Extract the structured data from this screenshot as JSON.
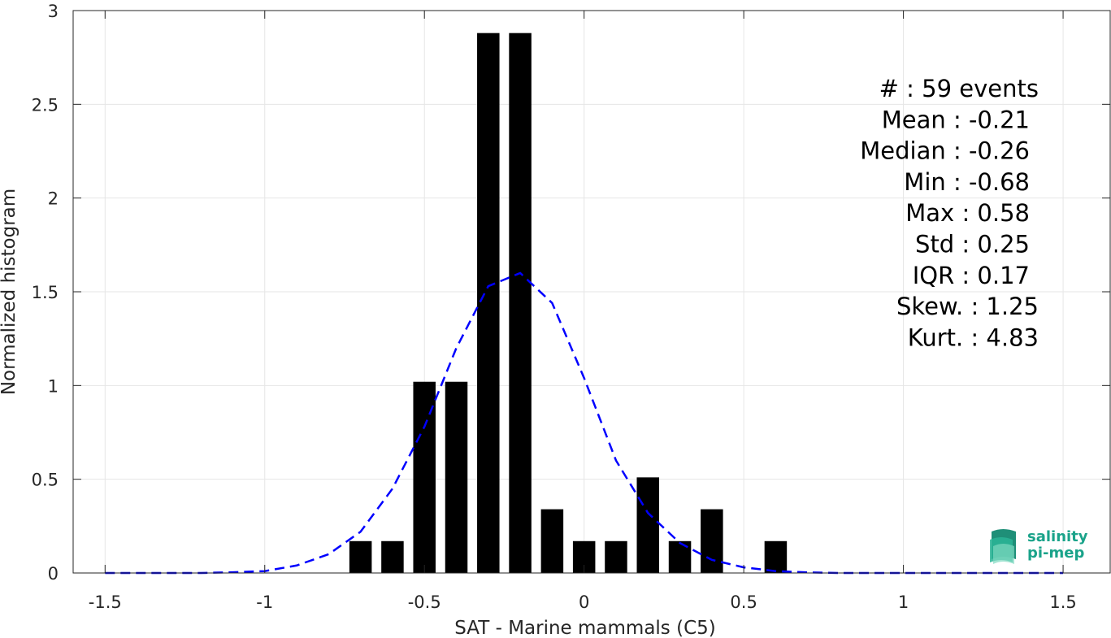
{
  "chart_data": {
    "type": "bar",
    "xlabel": "SAT - Marine mammals (C5)",
    "ylabel": "Normalized histogram",
    "xlim": [
      -1.6,
      1.65
    ],
    "ylim": [
      0,
      3
    ],
    "xticks": [
      "-1.5",
      "-1",
      "-0.5",
      "0",
      "0.5",
      "1",
      "1.5"
    ],
    "xtick_values": [
      -1.5,
      -1,
      -0.5,
      0,
      0.5,
      1,
      1.5
    ],
    "yticks": [
      "0",
      "0.5",
      "1",
      "1.5",
      "2",
      "2.5",
      "3"
    ],
    "ytick_values": [
      0,
      0.5,
      1,
      1.5,
      2,
      2.5,
      3
    ],
    "grid": true,
    "bar_width": 0.07,
    "bars": [
      {
        "x": -0.7,
        "y": 0.17
      },
      {
        "x": -0.6,
        "y": 0.17
      },
      {
        "x": -0.5,
        "y": 1.02
      },
      {
        "x": -0.4,
        "y": 1.02
      },
      {
        "x": -0.3,
        "y": 2.88
      },
      {
        "x": -0.2,
        "y": 2.88
      },
      {
        "x": -0.1,
        "y": 0.34
      },
      {
        "x": 0.0,
        "y": 0.17
      },
      {
        "x": 0.1,
        "y": 0.17
      },
      {
        "x": 0.2,
        "y": 0.51
      },
      {
        "x": 0.3,
        "y": 0.17
      },
      {
        "x": 0.4,
        "y": 0.34
      },
      {
        "x": 0.6,
        "y": 0.17
      }
    ],
    "fit_curve": {
      "style": "dashed",
      "color": "#0000ff",
      "x": [
        -1.5,
        -1.4,
        -1.3,
        -1.2,
        -1.1,
        -1.0,
        -0.9,
        -0.8,
        -0.7,
        -0.6,
        -0.5,
        -0.4,
        -0.3,
        -0.2,
        -0.1,
        0.0,
        0.1,
        0.2,
        0.3,
        0.4,
        0.5,
        0.6,
        0.7,
        0.8,
        0.9,
        1.0,
        1.1,
        1.2,
        1.3,
        1.4,
        1.5
      ],
      "y": [
        0.0,
        0.0,
        0.0,
        0.0,
        0.004,
        0.01,
        0.04,
        0.1,
        0.22,
        0.45,
        0.78,
        1.2,
        1.53,
        1.6,
        1.44,
        1.04,
        0.6,
        0.32,
        0.16,
        0.07,
        0.03,
        0.01,
        0.003,
        0.0,
        0.0,
        0.0,
        0.0,
        0.0,
        0.0,
        0.0,
        0.0
      ]
    },
    "stats": [
      "#  : 59 events",
      "Mean : -0.21",
      "Median : -0.26",
      "Min : -0.68",
      "Max : 0.58",
      "Std : 0.25",
      "IQR : 0.17",
      "Skew. : 1.25",
      "Kurt. : 4.83"
    ]
  },
  "logo": {
    "line1": "salinity",
    "line2": "pi-mep"
  },
  "colors": {
    "bar": "#000000",
    "curve": "#0000ff",
    "grid": "#e6e6e6",
    "axis": "#262626",
    "logo": "#1aa38a"
  }
}
